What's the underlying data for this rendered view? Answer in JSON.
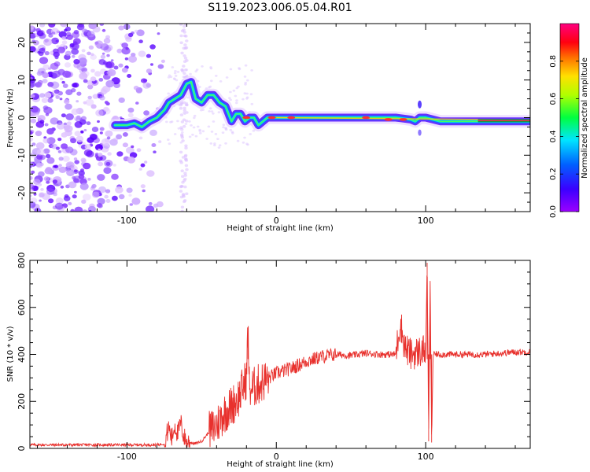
{
  "title": "S119.2023.006.05.04.R01",
  "colors": {
    "snr_line": "#e8312d",
    "ridge_core": "#e8304a",
    "frame": "#000000"
  },
  "chart_data": [
    {
      "type": "heatmap",
      "name": "frequency-height-spectrogram",
      "xlabel": "Height of straight line (km)",
      "ylabel": "Frequency (Hz)",
      "xlim": [
        -165,
        170
      ],
      "ylim": [
        -25,
        25
      ],
      "x_ticks": [
        -100,
        0,
        100
      ],
      "y_ticks": [
        -20,
        -10,
        0,
        10,
        20
      ],
      "colorbar": {
        "label": "Normalized spectral amplitude",
        "range": [
          0.0,
          1.0
        ],
        "ticks": [
          "0.0",
          "0.2",
          "0.4",
          "0.6",
          "0.8"
        ],
        "colormap": "gist_rainbow (violet → blue → cyan → green → yellow → red → magenta)"
      },
      "ridge": {
        "x": [
          -108,
          -100,
          -95,
          -90,
          -85,
          -80,
          -75,
          -72,
          -68,
          -64,
          -60,
          -57,
          -54,
          -50,
          -46,
          -42,
          -38,
          -34,
          -30,
          -27,
          -24,
          -21,
          -18,
          -15,
          -12,
          -9,
          -6,
          -3,
          0,
          10,
          20,
          40,
          60,
          80,
          90,
          93,
          96,
          100,
          110,
          130,
          150,
          170
        ],
        "y": [
          -2,
          -2,
          -1.5,
          -2.5,
          -1,
          0,
          2,
          4,
          5,
          6,
          9,
          9.5,
          5,
          4,
          6,
          6,
          4,
          3,
          -1,
          1,
          1,
          -1,
          0,
          0,
          -2,
          -1,
          0,
          0,
          0,
          0,
          0,
          0,
          0,
          0,
          -0.5,
          -1,
          0,
          0,
          -1,
          -1,
          -1,
          -1
        ]
      },
      "noise_region_x": [
        -165,
        -75
      ]
    },
    {
      "type": "line",
      "name": "snr-vs-height",
      "xlabel": "Height of straight line (km)",
      "ylabel": "SNR (10 * v/v)",
      "xlim": [
        -165,
        170
      ],
      "ylim": [
        0,
        800
      ],
      "x_ticks": [
        -100,
        0,
        100
      ],
      "y_ticks": [
        0,
        200,
        400,
        600,
        800
      ],
      "series": [
        {
          "x": [
            -165,
            -120,
            -80,
            -75,
            -72,
            -70,
            -68,
            -66,
            -64,
            -62,
            -60,
            -55,
            -50,
            -45,
            -40,
            -35,
            -30,
            -25,
            -20,
            -19,
            -18,
            -15,
            -10,
            -5,
            0,
            10,
            20,
            30,
            40,
            50,
            60,
            70,
            80,
            83,
            86,
            90,
            95,
            100,
            101,
            102,
            103,
            104,
            105,
            110,
            120,
            140,
            160,
            170
          ],
          "y": [
            15,
            15,
            15,
            20,
            90,
            40,
            100,
            60,
            110,
            50,
            30,
            20,
            30,
            70,
            100,
            150,
            180,
            220,
            300,
            510,
            250,
            260,
            280,
            300,
            320,
            340,
            370,
            390,
            400,
            395,
            405,
            400,
            400,
            540,
            430,
            400,
            410,
            420,
            790,
            60,
            710,
            30,
            400,
            400,
            400,
            400,
            410,
            410
          ]
        }
      ],
      "events": [
        {
          "x": -19,
          "y": 510
        },
        {
          "x": 101,
          "y": 790
        },
        {
          "x": 103,
          "y": 710
        }
      ]
    }
  ]
}
